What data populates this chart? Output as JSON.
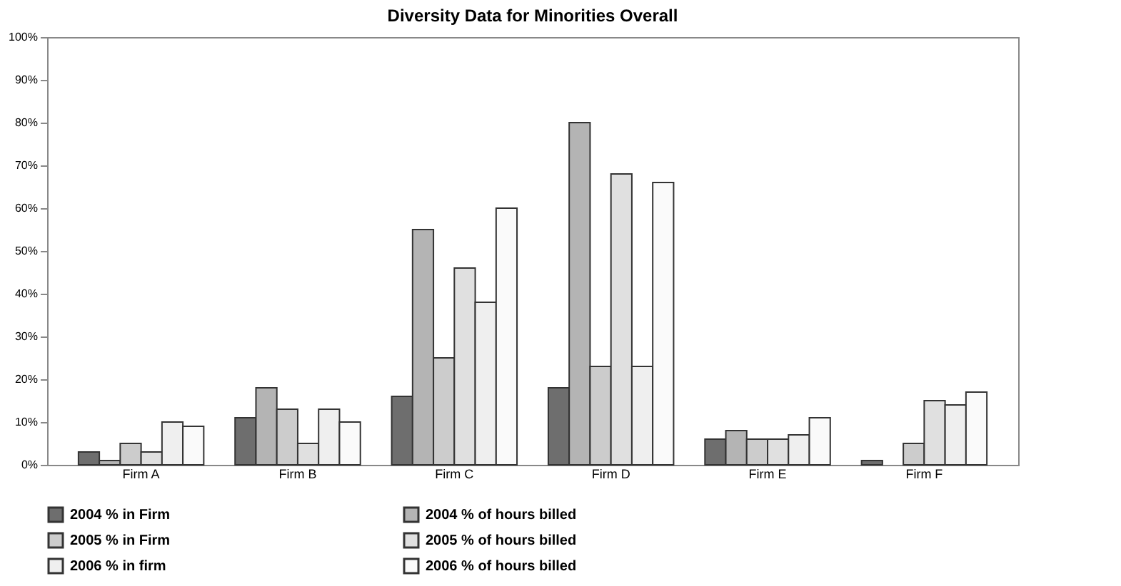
{
  "chart_data": {
    "type": "bar",
    "title": "Diversity Data for Minorities Overall",
    "categories": [
      "Firm A",
      "Firm B",
      "Firm C",
      "Firm D",
      "Firm E",
      "Firm F"
    ],
    "series": [
      {
        "name": "2004 % in Firm",
        "color": "#6e6e6e",
        "values": [
          3,
          11,
          16,
          18,
          6,
          1
        ]
      },
      {
        "name": "2004 % of hours billed",
        "color": "#b4b4b4",
        "values": [
          1,
          18,
          55,
          80,
          8,
          null
        ]
      },
      {
        "name": "2005 % in Firm",
        "color": "#cccccc",
        "values": [
          5,
          13,
          25,
          23,
          6,
          5
        ]
      },
      {
        "name": "2005 % of hours billed",
        "color": "#e0e0e0",
        "values": [
          3,
          5,
          46,
          68,
          6,
          15
        ]
      },
      {
        "name": "2006 % in firm",
        "color": "#efefef",
        "values": [
          10,
          13,
          38,
          23,
          7,
          14
        ]
      },
      {
        "name": "2006 % of hours billed",
        "color": "#fafafa",
        "values": [
          9,
          10,
          60,
          66,
          11,
          17
        ]
      }
    ],
    "ylim": [
      0,
      100
    ],
    "yticks": [
      {
        "value": 0,
        "label": "0%"
      },
      {
        "value": 10,
        "label": "10%"
      },
      {
        "value": 20,
        "label": "20%"
      },
      {
        "value": 30,
        "label": "30%"
      },
      {
        "value": 40,
        "label": "40%"
      },
      {
        "value": 50,
        "label": "50%"
      },
      {
        "value": 60,
        "label": "60%"
      },
      {
        "value": 70,
        "label": "70%"
      },
      {
        "value": 80,
        "label": "80%"
      },
      {
        "value": 90,
        "label": "90%"
      },
      {
        "value": 100,
        "label": "100%"
      }
    ],
    "grid": false,
    "legend": "bottom"
  }
}
